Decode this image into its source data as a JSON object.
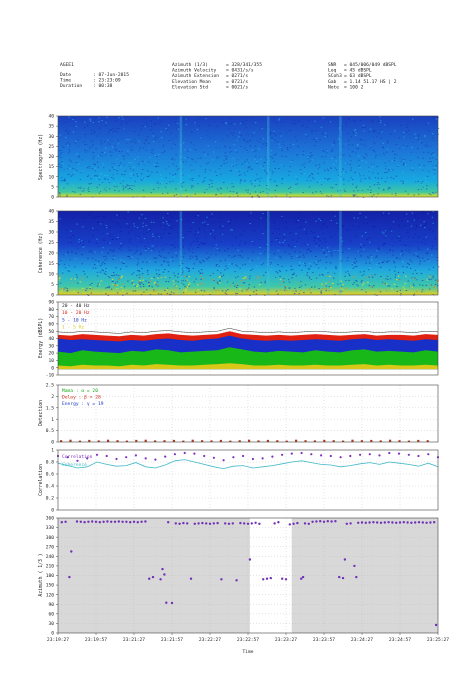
{
  "header": {
    "station": "AGEE1",
    "col1": [
      {
        "label": "Date",
        "value": ": 07-Jun-2015"
      },
      {
        "label": "Time",
        "value": ": 23:23:09"
      },
      {
        "label": "Duration",
        "value": ": 00:38"
      }
    ],
    "col2": [
      {
        "label": "Azimuth (1/3)",
        "value": "= 328/341/355"
      },
      {
        "label": "Azimuth Velocity",
        "value": "= 0431/s/s"
      },
      {
        "label": "Azimuth Extension",
        "value": "= 0271/s"
      },
      {
        "label": "Elevation Mean",
        "value": "= 0721/s"
      },
      {
        "label": "Elevation Std",
        "value": "= 0021/s"
      }
    ],
    "col3": [
      {
        "label": "SNR",
        "value": "= 045/006/049 dBSPL"
      },
      {
        "label": "Leq",
        "value": "= 45 dBSPL"
      },
      {
        "label": "SCoh3",
        "value": "= 63 dBSPL"
      },
      {
        "label": "Gab",
        "value": "= 1.14 51.17 HS | 2"
      },
      {
        "label": "Note",
        "value": "= 100 2"
      }
    ]
  },
  "colors": {
    "spec_low": "#1833b8",
    "spec_mid": "#18b8e0",
    "spec_high": "#e8e020",
    "energy_red": "#e02010",
    "energy_blue": "#1830c8",
    "energy_green": "#18b818",
    "energy_yellow": "#d8c818",
    "correlation": "#8030c0",
    "coherence": "#40b8c8",
    "azimuth": "#7030b8",
    "shade": "#d8d8d8"
  },
  "x_axis": {
    "ticks": [
      "23:19:27",
      "23:19:57",
      "23:21:27",
      "23:21:57",
      "23:22:27",
      "23:22:57",
      "23:23:27",
      "23:23:57",
      "23:24:27",
      "23:24:57",
      "23:25:27"
    ],
    "label": "Time"
  },
  "chart_data": [
    {
      "type": "heatmap",
      "ylabel": "Spectrogram (Hz)",
      "yticks": [
        "40",
        "35",
        "30",
        "25",
        "20",
        "15",
        "10",
        "5",
        "0"
      ],
      "ylim": [
        0,
        40
      ]
    },
    {
      "type": "heatmap",
      "ylabel": "Coherence (Hz)",
      "yticks": [
        "40",
        "35",
        "30",
        "25",
        "20",
        "15",
        "10",
        "5",
        "0"
      ],
      "ylim": [
        0,
        40
      ]
    },
    {
      "type": "area",
      "ylabel": "Energy (dBSPL)",
      "yticks": [
        "90",
        "80",
        "70",
        "60",
        "50",
        "40",
        "30",
        "20",
        "10",
        "0",
        "-10"
      ],
      "ylim": [
        -10,
        90
      ],
      "legend": [
        "20 - 40 Hz",
        "10 - 20 Hz",
        "5 - 10 Hz",
        "1 - 5 Hz"
      ],
      "legend_placement": "top-left",
      "series": [
        {
          "name": "20 - 40 Hz",
          "values": [
            45,
            44,
            46,
            45,
            44,
            43,
            45,
            44,
            46,
            47,
            45,
            44,
            45,
            46,
            50,
            46,
            45,
            44,
            45,
            44,
            45,
            46,
            45,
            44,
            45,
            46,
            44,
            45,
            45,
            44,
            46,
            45
          ]
        },
        {
          "name": "10 - 20 Hz",
          "values": [
            40,
            38,
            39,
            38,
            37,
            36,
            38,
            37,
            39,
            40,
            38,
            37,
            39,
            40,
            44,
            40,
            38,
            37,
            38,
            37,
            38,
            39,
            38,
            37,
            39,
            40,
            38,
            39,
            38,
            37,
            39,
            38
          ]
        },
        {
          "name": "5 - 10 Hz",
          "values": [
            22,
            20,
            24,
            22,
            21,
            20,
            23,
            22,
            25,
            24,
            21,
            22,
            23,
            24,
            28,
            25,
            22,
            21,
            23,
            22,
            21,
            24,
            22,
            21,
            24,
            25,
            22,
            23,
            22,
            21,
            24,
            22
          ]
        },
        {
          "name": "1 - 5 Hz",
          "values": [
            3,
            2,
            4,
            3,
            3,
            2,
            4,
            3,
            5,
            4,
            3,
            3,
            4,
            5,
            6,
            5,
            3,
            3,
            4,
            3,
            3,
            4,
            3,
            3,
            4,
            5,
            3,
            4,
            3,
            3,
            4,
            3
          ]
        }
      ]
    },
    {
      "type": "bar",
      "ylabel": "Detection",
      "yticks": [
        "2.5",
        "2",
        "1.5",
        "1",
        "0.5",
        "0"
      ],
      "ylim": [
        0,
        2.5
      ],
      "legend": [
        "Mama   : α = 20",
        "Delay : β = 28",
        "Energy : γ = 19"
      ],
      "legend_placement": "top-left",
      "values": [
        0.08,
        0.1,
        0.06,
        0.09,
        0.07,
        0.1,
        0.08,
        0.06,
        0.09,
        0.1,
        0.07,
        0.08,
        0.09,
        0.06,
        0.1,
        0.08,
        0.07,
        0.09,
        0.06,
        0.08,
        0.1,
        0.07,
        0.09,
        0.08,
        0.06,
        0.1,
        0.08,
        0.07,
        0.09,
        0.08,
        0.06,
        0.1,
        0.08,
        0.09,
        0.07,
        0.1,
        0.08,
        0.06,
        0.09,
        0.08
      ]
    },
    {
      "type": "line",
      "ylabel": "Correlation",
      "yticks": [
        "1",
        "0.8",
        "0.6",
        "0.4",
        "0.2",
        "0"
      ],
      "ylim": [
        0,
        1
      ],
      "legend_placement": "top-left",
      "series": [
        {
          "name": "Correlation",
          "values": [
            0.9,
            0.88,
            0.82,
            0.86,
            0.92,
            0.9,
            0.85,
            0.88,
            0.91,
            0.86,
            0.84,
            0.89,
            0.93,
            0.95,
            0.94,
            0.9,
            0.87,
            0.83,
            0.88,
            0.9,
            0.85,
            0.86,
            0.89,
            0.92,
            0.94,
            0.95,
            0.93,
            0.91,
            0.9,
            0.88,
            0.9,
            0.92,
            0.93,
            0.91,
            0.95,
            0.94,
            0.92,
            0.9,
            0.93,
            0.88
          ]
        },
        {
          "name": "Coherence",
          "values": [
            0.78,
            0.74,
            0.7,
            0.72,
            0.8,
            0.76,
            0.73,
            0.74,
            0.79,
            0.72,
            0.7,
            0.75,
            0.82,
            0.84,
            0.8,
            0.76,
            0.72,
            0.69,
            0.73,
            0.74,
            0.7,
            0.72,
            0.74,
            0.77,
            0.8,
            0.82,
            0.79,
            0.76,
            0.75,
            0.72,
            0.74,
            0.77,
            0.79,
            0.76,
            0.8,
            0.78,
            0.76,
            0.73,
            0.78,
            0.72
          ]
        }
      ]
    },
    {
      "type": "scatter",
      "ylabel": "Azimuth ( 1/3 )",
      "yticks": [
        "360",
        "330",
        "300",
        "270",
        "240",
        "210",
        "180",
        "150",
        "120",
        "90",
        "60",
        "30",
        "0"
      ],
      "ylim": [
        0,
        360
      ],
      "xlim": [
        0,
        100
      ],
      "shade_ranges": [
        [
          0,
          50.5
        ],
        [
          61.5,
          100
        ]
      ],
      "points": [
        [
          1,
          347
        ],
        [
          2,
          348
        ],
        [
          3,
          175
        ],
        [
          3.5,
          255
        ],
        [
          5,
          349
        ],
        [
          6,
          348
        ],
        [
          7,
          347
        ],
        [
          8,
          348
        ],
        [
          9,
          349
        ],
        [
          10,
          348
        ],
        [
          11,
          347
        ],
        [
          12,
          348
        ],
        [
          13,
          349
        ],
        [
          14,
          348
        ],
        [
          15,
          348
        ],
        [
          16,
          349
        ],
        [
          17,
          348
        ],
        [
          18,
          348
        ],
        [
          19,
          347
        ],
        [
          20,
          348
        ],
        [
          21,
          347
        ],
        [
          22,
          348
        ],
        [
          23,
          349
        ],
        [
          24,
          170
        ],
        [
          25,
          175
        ],
        [
          27,
          168
        ],
        [
          27.5,
          200
        ],
        [
          28,
          183
        ],
        [
          28.5,
          95
        ],
        [
          29,
          347
        ],
        [
          30,
          94
        ],
        [
          31,
          343
        ],
        [
          32,
          342
        ],
        [
          33,
          344
        ],
        [
          34,
          343
        ],
        [
          35,
          170
        ],
        [
          36,
          342
        ],
        [
          37,
          343
        ],
        [
          38,
          344
        ],
        [
          39,
          343
        ],
        [
          40,
          342
        ],
        [
          41,
          343
        ],
        [
          42,
          344
        ],
        [
          43,
          168
        ],
        [
          44,
          343
        ],
        [
          45,
          342
        ],
        [
          46,
          343
        ],
        [
          47,
          165
        ],
        [
          48,
          344
        ],
        [
          49,
          343
        ],
        [
          50,
          342
        ],
        [
          50.5,
          230
        ],
        [
          51,
          343
        ],
        [
          52,
          345
        ],
        [
          53,
          342
        ],
        [
          54,
          168
        ],
        [
          55,
          170
        ],
        [
          56,
          172
        ],
        [
          57,
          343
        ],
        [
          58,
          347
        ],
        [
          59,
          170
        ],
        [
          60,
          168
        ],
        [
          61,
          340
        ],
        [
          62,
          342
        ],
        [
          63,
          344
        ],
        [
          64,
          170
        ],
        [
          64.5,
          175
        ],
        [
          65,
          343
        ],
        [
          66,
          342
        ],
        [
          67,
          348
        ],
        [
          68,
          349
        ],
        [
          69,
          350
        ],
        [
          70,
          348
        ],
        [
          71,
          350
        ],
        [
          72,
          349
        ],
        [
          73,
          350
        ],
        [
          74,
          175
        ],
        [
          75,
          172
        ],
        [
          75.5,
          230
        ],
        [
          76,
          342
        ],
        [
          77,
          343
        ],
        [
          78,
          210
        ],
        [
          78.5,
          175
        ],
        [
          79,
          345
        ],
        [
          80,
          346
        ],
        [
          81,
          345
        ],
        [
          82,
          346
        ],
        [
          83,
          347
        ],
        [
          84,
          346
        ],
        [
          85,
          345
        ],
        [
          86,
          346
        ],
        [
          87,
          347
        ],
        [
          88,
          346
        ],
        [
          89,
          345
        ],
        [
          90,
          346
        ],
        [
          91,
          347
        ],
        [
          92,
          346
        ],
        [
          93,
          345
        ],
        [
          94,
          346
        ],
        [
          95,
          347
        ],
        [
          96,
          346
        ],
        [
          97,
          345
        ],
        [
          98,
          346
        ],
        [
          99,
          347
        ],
        [
          99.5,
          25
        ]
      ]
    }
  ]
}
